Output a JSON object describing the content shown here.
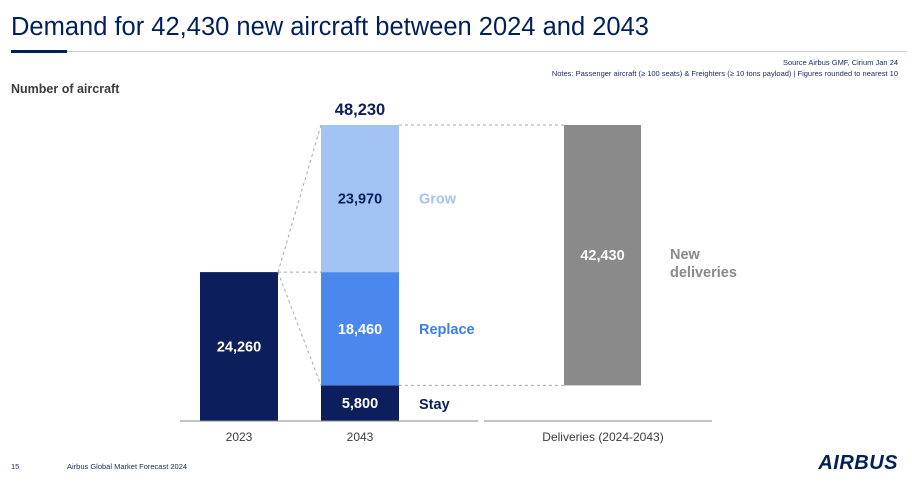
{
  "slide": {
    "title": "Demand for 42,430 new aircraft between 2024 and 2043",
    "source": "Source Airbus GMF, Cirium Jan 24",
    "notes": "Notes: Passenger aircraft (≥ 100 seats) & Freighters (≥ 10 tons payload) | Figures rounded to nearest 10",
    "page_number": "15",
    "footer": "Airbus Global Market Forecast 2024",
    "logo_text": "AIRBUS"
  },
  "chart_data": {
    "type": "bar",
    "ylabel": "Number of aircraft",
    "categories": [
      "2023",
      "2043",
      "Deliveries (2024-2043)"
    ],
    "bars": [
      {
        "category": "2023",
        "total": 24260,
        "total_label": "",
        "segments": [
          {
            "name": "",
            "value": 24260,
            "label": "24,260",
            "color": "#0c1e5b"
          }
        ]
      },
      {
        "category": "2043",
        "total": 48230,
        "total_label": "48,230",
        "segments": [
          {
            "name": "Stay",
            "value": 5800,
            "label": "5,800",
            "color": "#0c1e5b"
          },
          {
            "name": "Replace",
            "value": 18460,
            "label": "18,460",
            "color": "#4a88ee"
          },
          {
            "name": "Grow",
            "value": 23970,
            "label": "23,970",
            "color": "#a3c3f5"
          }
        ]
      },
      {
        "category": "Deliveries (2024-2043)",
        "total": 42430,
        "total_label": "",
        "floating_base": 5800,
        "segments": [
          {
            "name": "New deliveries",
            "value": 42430,
            "label": "42,430",
            "color": "#8a8a8a"
          }
        ]
      }
    ],
    "annotations": [
      {
        "text": "Grow",
        "color": "#a3c3f5"
      },
      {
        "text": "Replace",
        "color": "#3b7fe8"
      },
      {
        "text": "Stay",
        "color": "#0c1e5b"
      },
      {
        "text": "New",
        "color": "#8a8a8a"
      },
      {
        "text": "deliveries",
        "color": "#8a8a8a"
      }
    ],
    "ylim": [
      0,
      48230
    ],
    "grid": false,
    "legend": "none"
  }
}
